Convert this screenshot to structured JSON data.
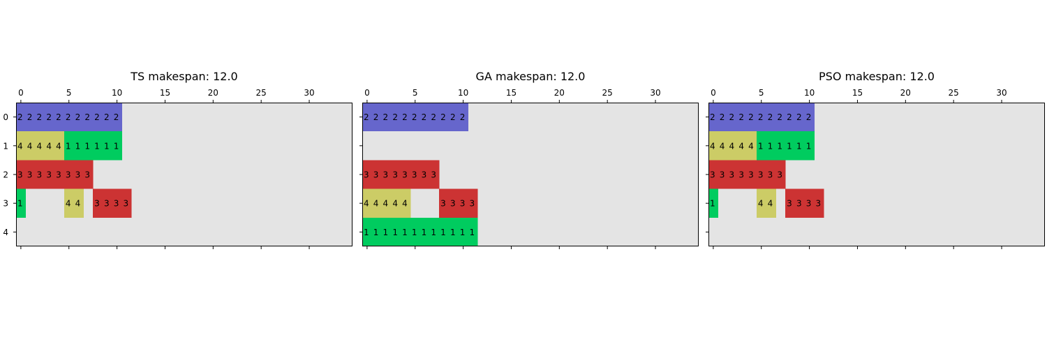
{
  "chart_data": [
    {
      "type": "heatmap",
      "title": "TS makespan: 12.0",
      "xlim": [
        -0.5,
        34.5
      ],
      "ylim": [
        -0.5,
        4.5
      ],
      "x_ticks": [
        0,
        5,
        10,
        15,
        20,
        25,
        30
      ],
      "y_ticks": [
        0,
        1,
        2,
        3,
        4
      ],
      "x_tick_position": "top",
      "background_color": "#e4e4e4",
      "rows": [
        [
          2,
          2,
          2,
          2,
          2,
          2,
          2,
          2,
          2,
          2,
          2
        ],
        [
          4,
          4,
          4,
          4,
          4,
          1,
          1,
          1,
          1,
          1,
          1
        ],
        [
          3,
          3,
          3,
          3,
          3,
          3,
          3,
          3
        ],
        [
          1,
          0,
          0,
          0,
          0,
          4,
          4,
          0,
          3,
          3,
          3,
          3
        ],
        []
      ]
    },
    {
      "type": "heatmap",
      "title": "GA makespan: 12.0",
      "xlim": [
        -0.5,
        34.5
      ],
      "ylim": [
        -0.5,
        4.5
      ],
      "x_ticks": [
        0,
        5,
        10,
        15,
        20,
        25,
        30
      ],
      "y_ticks": [
        0,
        1,
        2,
        3,
        4
      ],
      "x_tick_position": "top",
      "background_color": "#e4e4e4",
      "rows": [
        [
          2,
          2,
          2,
          2,
          2,
          2,
          2,
          2,
          2,
          2,
          2
        ],
        [],
        [
          3,
          3,
          3,
          3,
          3,
          3,
          3,
          3
        ],
        [
          4,
          4,
          4,
          4,
          4,
          0,
          0,
          0,
          3,
          3,
          3,
          3
        ],
        [
          1,
          1,
          1,
          1,
          1,
          1,
          1,
          1,
          1,
          1,
          1,
          1
        ]
      ]
    },
    {
      "type": "heatmap",
      "title": "PSO makespan: 12.0",
      "xlim": [
        -0.5,
        34.5
      ],
      "ylim": [
        -0.5,
        4.5
      ],
      "x_ticks": [
        0,
        5,
        10,
        15,
        20,
        25,
        30
      ],
      "y_ticks": [
        0,
        1,
        2,
        3,
        4
      ],
      "x_tick_position": "top",
      "background_color": "#e4e4e4",
      "rows": [
        [
          2,
          2,
          2,
          2,
          2,
          2,
          2,
          2,
          2,
          2,
          2
        ],
        [
          4,
          4,
          4,
          4,
          4,
          1,
          1,
          1,
          1,
          1,
          1
        ],
        [
          3,
          3,
          3,
          3,
          3,
          3,
          3,
          3
        ],
        [
          1,
          0,
          0,
          0,
          0,
          4,
          4,
          0,
          3,
          3,
          3,
          3
        ],
        []
      ]
    }
  ],
  "job_colors": {
    "1": "#00cc5f",
    "2": "#6666cc",
    "3": "#cc3333",
    "4": "#cccc66"
  }
}
